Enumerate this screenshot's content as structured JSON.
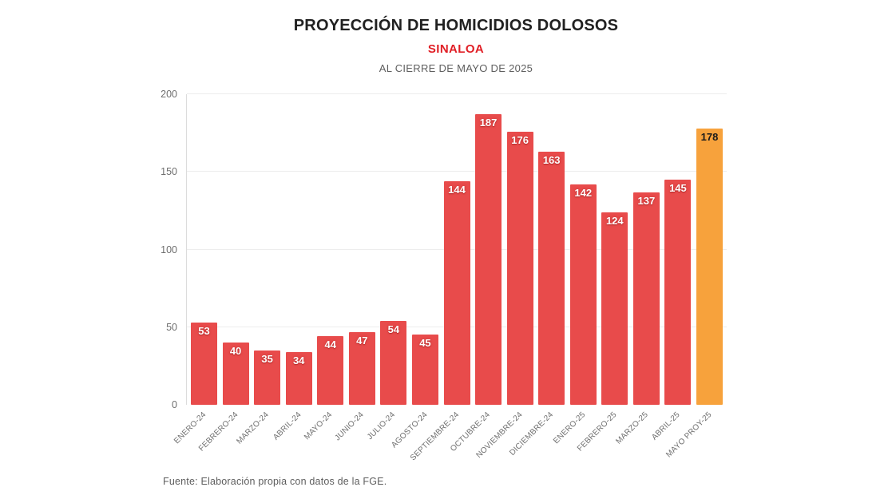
{
  "header": {
    "title": "PROYECCIÓN DE HOMICIDIOS DOLOSOS",
    "subtitle": "SINALOA",
    "period": "AL CIERRE DE MAYO DE 2025"
  },
  "footer": {
    "source": "Fuente: Elaboración propia con datos de la FGE."
  },
  "colors": {
    "bar": "#E84B4B",
    "bar_highlight": "#F7A23C",
    "title_text": "#212121",
    "subtitle_red": "#E01E25",
    "muted_text": "#5E5E5E",
    "axis_text": "#6E6E6E",
    "grid": "#EDEDED",
    "axis_line": "#DCDCDC",
    "value_label": "#FFFFFF",
    "value_label_highlight": "#1A1A1A"
  },
  "chart_data": {
    "type": "bar",
    "title": "PROYECCIÓN DE HOMICIDIOS DOLOSOS",
    "subtitle": "SINALOA",
    "note": "AL CIERRE DE MAYO DE 2025",
    "source": "Fuente: Elaboración propia con datos de la FGE.",
    "categories": [
      "ENERO-24",
      "FEBRERO-24",
      "MARZO-24",
      "ABRIL-24",
      "MAYO-24",
      "JUNIO-24",
      "JULIO-24",
      "AGOSTO-24",
      "SEPTIEMBRE-24",
      "OCTUBRE-24",
      "NOVIEMBRE-24",
      "DICIEMBRE-24",
      "ENERO-25",
      "FEBRERO-25",
      "MARZO-25",
      "ABRIL-25",
      "MAYO PROY-25"
    ],
    "values": [
      53,
      40,
      35,
      34,
      44,
      47,
      54,
      45,
      144,
      187,
      176,
      163,
      142,
      124,
      137,
      145,
      178
    ],
    "highlight_index": 16,
    "highlight_category": "MAYO PROY-25",
    "xlabel": "",
    "ylabel": "",
    "ylim": [
      0,
      200
    ],
    "yticks": [
      0,
      50,
      100,
      150,
      200
    ],
    "grid": true,
    "legend": false
  }
}
